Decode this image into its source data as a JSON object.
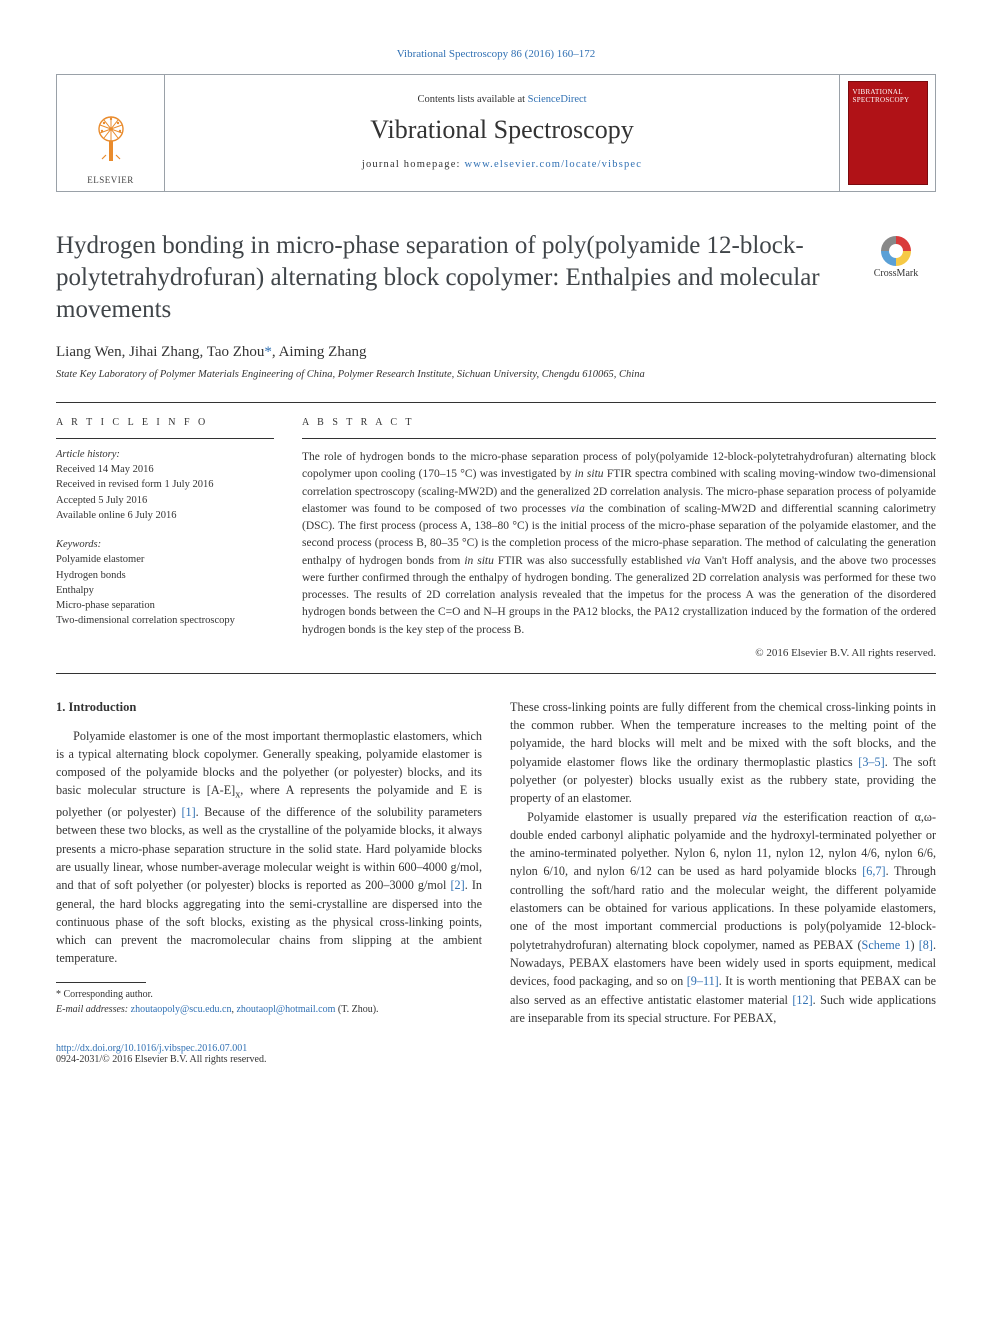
{
  "top_citation_link": "Vibrational Spectroscopy 86 (2016) 160–172",
  "header": {
    "contents_prefix": "Contents lists available at ",
    "contents_link": "ScienceDirect",
    "journal_name": "Vibrational Spectroscopy",
    "homepage_prefix": "journal homepage: ",
    "homepage_url": "www.elsevier.com/locate/vibspec",
    "elsevier": "ELSEVIER",
    "cover_title": "VIBRATIONAL SPECTROSCOPY"
  },
  "crossmark_label": "CrossMark",
  "title": "Hydrogen bonding in micro-phase separation of poly(polyamide 12-block-polytetrahydrofuran) alternating block copolymer: Enthalpies and molecular movements",
  "authors_html": "Liang Wen, Jihai Zhang, Tao Zhou<span class=\"corr\">*</span>, Aiming Zhang",
  "affiliation": "State Key Laboratory of Polymer Materials Engineering of China, Polymer Research Institute, Sichuan University, Chengdu 610065, China",
  "info_label": "A R T I C L E   I N F O",
  "abstract_label": "A B S T R A C T",
  "history": {
    "label": "Article history:",
    "received": "Received 14 May 2016",
    "revised": "Received in revised form 1 July 2016",
    "accepted": "Accepted 5 July 2016",
    "online": "Available online 6 July 2016"
  },
  "keywords": {
    "label": "Keywords:",
    "items": [
      "Polyamide elastomer",
      "Hydrogen bonds",
      "Enthalpy",
      "Micro-phase separation",
      "Two-dimensional correlation spectroscopy"
    ]
  },
  "abstract_html": "The role of hydrogen bonds to the micro-phase separation process of poly(polyamide 12-block-polytetrahydrofuran) alternating block copolymer upon cooling (170–15 °C) was investigated by <i>in situ</i> FTIR spectra combined with scaling moving-window two-dimensional correlation spectroscopy (scaling-MW2D) and the generalized 2D correlation analysis. The micro-phase separation process of polyamide elastomer was found to be composed of two processes <i>via</i> the combination of scaling-MW2D and differential scanning calorimetry (DSC). The first process (process A, 138–80 °C) is the initial process of the micro-phase separation of the polyamide elastomer, and the second process (process B, 80–35 °C) is the completion process of the micro-phase separation. The method of calculating the generation enthalpy of hydrogen bonds from <i>in situ</i> FTIR was also successfully established <i>via</i> Van't Hoff analysis, and the above two processes were further confirmed through the enthalpy of hydrogen bonding. The generalized 2D correlation analysis was performed for these two processes. The results of 2D correlation analysis revealed that the impetus for the process A was the generation of the disordered hydrogen bonds between the C=O and N–H groups in the PA12 blocks, the PA12 crystallization induced by the formation of the ordered hydrogen bonds is the key step of the process B.",
  "copyright": "© 2016 Elsevier B.V. All rights reserved.",
  "intro_heading": "1. Introduction",
  "intro_p1_html": "Polyamide elastomer is one of the most important thermoplastic elastomers, which is a typical alternating block copolymer. Generally speaking, polyamide elastomer is composed of the polyamide blocks and the polyether (or polyester) blocks, and its basic molecular structure is [A-E]<sub>x</sub>, where A represents the polyamide and E is polyether (or polyester) <span class=\"ref-link\">[1]</span>. Because of the difference of the solubility parameters between these two blocks, as well as the crystalline of the polyamide blocks, it always presents a micro-phase separation structure in the solid state. Hard polyamide blocks are usually linear, whose number-average molecular weight is within 600–4000 g/mol, and that of soft polyether (or polyester) blocks is reported as 200–3000 g/mol <span class=\"ref-link\">[2]</span>. In general, the hard blocks aggregating into the semi-crystalline are dispersed into the continuous phase of the soft blocks, existing as the physical cross-linking points, which can prevent the macromolecular chains from slipping at the ambient temperature.",
  "intro_p2_html": "These cross-linking points are fully different from the chemical cross-linking points in the common rubber. When the temperature increases to the melting point of the polyamide, the hard blocks will melt and be mixed with the soft blocks, and the polyamide elastomer flows like the ordinary thermoplastic plastics <span class=\"ref-link\">[3–5]</span>. The soft polyether (or polyester) blocks usually exist as the rubbery state, providing the property of an elastomer.",
  "intro_p3_html": "Polyamide elastomer is usually prepared <i>via</i> the esterification reaction of α,ω-double ended carbonyl aliphatic polyamide and the hydroxyl-terminated polyether or the amino-terminated polyether. Nylon 6, nylon 11, nylon 12, nylon 4/6, nylon 6/6, nylon 6/10, and nylon 6/12 can be used as hard polyamide blocks <span class=\"ref-link\">[6,7]</span>. Through controlling the soft/hard ratio and the molecular weight, the different polyamide elastomers can be obtained for various applications. In these polyamide elastomers, one of the most important commercial productions is poly(polyamide 12-block-polytetrahydrofuran) alternating block copolymer, named as PEBAX (<span class=\"ref-link\">Scheme 1</span>) <span class=\"ref-link\">[8]</span>. Nowadays, PEBAX elastomers have been widely used in sports equipment, medical devices, food packaging, and so on <span class=\"ref-link\">[9–11]</span>. It is worth mentioning that PEBAX can be also served as an effective antistatic elastomer material <span class=\"ref-link\">[12]</span>. Such wide applications are inseparable from its special structure. For PEBAX,",
  "footnote": {
    "corr_label": "* Corresponding author.",
    "email_label": "E-mail addresses:",
    "email1": "zhoutaopoly@scu.edu.cn",
    "email2": "zhoutaopl@hotmail.com",
    "email_name": "(T. Zhou)."
  },
  "doi": {
    "url": "http://dx.doi.org/10.1016/j.vibspec.2016.07.001",
    "line2": "0924-2031/© 2016 Elsevier B.V. All rights reserved."
  },
  "colors": {
    "link": "#3070b3",
    "text": "#333333",
    "rule": "#333333",
    "border": "#9aa1a8",
    "elsevier_orange": "#e98b2c",
    "cover_red": "#b01217"
  },
  "typography": {
    "body_family": "Times New Roman",
    "title_pt": 25,
    "journal_pt": 26,
    "body_pt": 12.2,
    "abstract_pt": 11.5,
    "small_pt": 10.5
  }
}
